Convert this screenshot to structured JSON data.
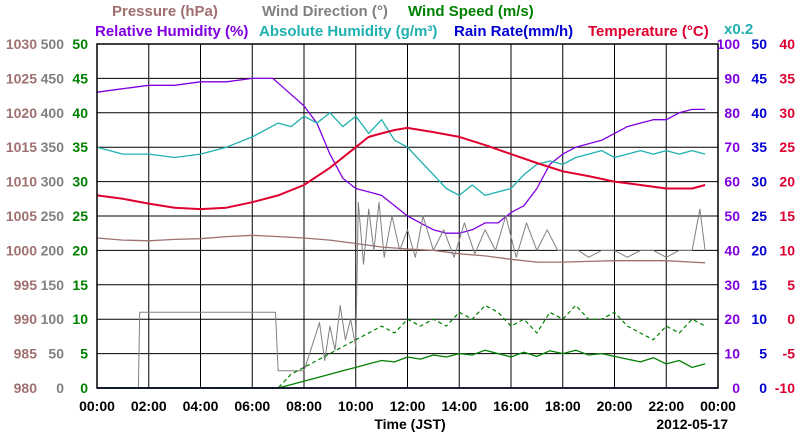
{
  "chart_data": {
    "type": "line",
    "date": "2012-05-17",
    "xlabel": "Time (JST)",
    "x_ticks": [
      "00:00",
      "02:00",
      "04:00",
      "06:00",
      "08:00",
      "10:00",
      "12:00",
      "14:00",
      "16:00",
      "18:00",
      "20:00",
      "22:00",
      "00:00"
    ],
    "x_range_hours": [
      0,
      24
    ],
    "grid": true,
    "legend": [
      {
        "name": "Pressure (hPa)",
        "color": "#a07070"
      },
      {
        "name": "Wind Direction (°)",
        "color": "#808080"
      },
      {
        "name": "Wind Speed (m/s)",
        "color": "#008000"
      },
      {
        "name": "Relative Humidity (%)",
        "color": "#8000e0"
      },
      {
        "name": "Absolute Humidity (g/m³)",
        "color": "#20b0b0"
      },
      {
        "name": "Rain Rate(mm/h)",
        "color": "#0000d0"
      },
      {
        "name": "Temperature (°C)",
        "color": "#e00030"
      }
    ],
    "multiplier_label": "x0.2",
    "axes": {
      "pressure": {
        "color": "#a07070",
        "range": [
          980,
          1030
        ],
        "ticks": [
          "980",
          "985",
          "990",
          "995",
          "1000",
          "1005",
          "1010",
          "1015",
          "1020",
          "1025",
          "1030"
        ]
      },
      "wind_direction": {
        "color": "#808080",
        "range": [
          0,
          500
        ],
        "ticks": [
          "0",
          "50",
          "100",
          "150",
          "200",
          "250",
          "300",
          "350",
          "400",
          "450",
          "500"
        ]
      },
      "wind_speed": {
        "color": "#008000",
        "range": [
          0,
          50
        ],
        "ticks": [
          "0",
          "5",
          "10",
          "15",
          "20",
          "25",
          "30",
          "35",
          "40",
          "45",
          "50"
        ]
      },
      "relative_humidity": {
        "color": "#8000e0",
        "range": [
          0,
          100
        ],
        "ticks": [
          "0",
          "10",
          "20",
          "30",
          "40",
          "50",
          "60",
          "70",
          "80",
          "90",
          "100"
        ]
      },
      "absolute_humidity": {
        "color": "#20b0b0",
        "range": [
          0,
          10
        ],
        "ticks": [
          "0",
          "5",
          "10",
          "15",
          "20",
          "25",
          "30",
          "35",
          "40",
          "45",
          "50"
        ]
      },
      "rain_rate": {
        "color": "#0000d0",
        "range": [
          0,
          50
        ],
        "ticks": [
          "0",
          "5",
          "10",
          "15",
          "20",
          "25",
          "30",
          "35",
          "40",
          "45",
          "50"
        ]
      },
      "temperature": {
        "color": "#e00030",
        "range": [
          -10,
          40
        ],
        "ticks": [
          "-10",
          "-5",
          "0",
          "5",
          "10",
          "15",
          "20",
          "25",
          "30",
          "35",
          "40"
        ]
      }
    },
    "series": [
      {
        "name": "Relative Humidity (%)",
        "axis": "relative_humidity",
        "x": [
          0,
          1,
          2,
          3,
          4,
          5,
          6,
          6.8,
          7.4,
          8,
          8.5,
          9,
          9.5,
          10,
          10.5,
          11,
          11.5,
          12,
          12.5,
          13,
          13.5,
          14,
          14.5,
          15,
          15.5,
          16,
          16.5,
          17,
          17.5,
          18,
          18.5,
          19,
          19.5,
          20,
          20.5,
          21,
          21.5,
          22,
          22.5,
          23,
          23.5
        ],
        "y": [
          86,
          87,
          88,
          88,
          89,
          89,
          90,
          90,
          86,
          82,
          77,
          68,
          61,
          58,
          57,
          56,
          53,
          50,
          48,
          46,
          45,
          45,
          46,
          48,
          48,
          51,
          53,
          58,
          65,
          68,
          70,
          71,
          72,
          74,
          76,
          77,
          78,
          78,
          80,
          81,
          81
        ]
      },
      {
        "name": "Absolute Humidity (g/m³)",
        "axis": "absolute_humidity",
        "x": [
          0,
          1,
          2,
          3,
          4,
          5,
          6,
          7,
          7.5,
          8,
          8.5,
          9,
          9.5,
          10,
          10.5,
          11,
          11.5,
          12,
          12.5,
          13,
          13.5,
          14,
          14.5,
          15,
          15.5,
          16,
          16.5,
          17,
          17.5,
          18,
          18.5,
          19,
          19.5,
          20,
          20.5,
          21,
          21.5,
          22,
          22.5,
          23,
          23.5
        ],
        "y": [
          7.0,
          6.8,
          6.8,
          6.7,
          6.8,
          7.0,
          7.3,
          7.7,
          7.6,
          7.9,
          7.7,
          8.0,
          7.6,
          7.9,
          7.4,
          7.8,
          7.2,
          7.0,
          6.6,
          6.2,
          5.8,
          5.6,
          5.9,
          5.6,
          5.7,
          5.8,
          6.2,
          6.5,
          6.6,
          6.5,
          6.7,
          6.8,
          6.9,
          6.7,
          6.8,
          6.9,
          6.8,
          6.9,
          6.8,
          6.9,
          6.8
        ]
      },
      {
        "name": "Temperature (°C)",
        "axis": "temperature",
        "x": [
          0,
          1,
          2,
          3,
          4,
          5,
          6,
          7,
          8,
          9,
          10,
          10.5,
          11,
          11.5,
          12,
          13,
          14,
          15,
          16,
          17,
          18,
          19,
          20,
          21,
          22,
          23,
          23.5
        ],
        "y": [
          18.0,
          17.5,
          16.8,
          16.2,
          16.0,
          16.2,
          17.0,
          18.0,
          19.5,
          22.0,
          25.0,
          26.5,
          27.0,
          27.5,
          27.8,
          27.2,
          26.5,
          25.3,
          24.0,
          22.7,
          21.5,
          20.8,
          20.0,
          19.5,
          19.0,
          19.0,
          19.5
        ]
      },
      {
        "name": "Pressure (hPa)",
        "axis": "pressure",
        "x": [
          0,
          1,
          2,
          3,
          4,
          5,
          6,
          7,
          8,
          9,
          10,
          11,
          12,
          13,
          14,
          15,
          16,
          17,
          18,
          19,
          20,
          21,
          22,
          23,
          23.5
        ],
        "y": [
          1001.8,
          1001.5,
          1001.4,
          1001.6,
          1001.7,
          1002.0,
          1002.2,
          1002.0,
          1001.8,
          1001.5,
          1001.0,
          1000.5,
          1000.2,
          1000.0,
          999.5,
          999.2,
          998.7,
          998.3,
          998.3,
          998.4,
          998.5,
          998.5,
          998.5,
          998.3,
          998.2
        ]
      },
      {
        "name": "Wind Direction (°)",
        "axis": "wind_direction",
        "x": [
          0,
          1.6,
          1.65,
          6.9,
          7.0,
          8.0,
          8.3,
          8.6,
          8.8,
          9.0,
          9.2,
          9.4,
          9.6,
          9.8,
          10.0,
          10.1,
          10.3,
          10.5,
          10.7,
          10.9,
          11.1,
          11.4,
          11.7,
          12.0,
          12.3,
          12.6,
          13.0,
          13.4,
          13.8,
          14.2,
          14.6,
          15.0,
          15.4,
          15.8,
          16.2,
          16.6,
          17.0,
          17.4,
          17.8,
          18.2,
          18.6,
          19.0,
          19.5,
          20.0,
          20.5,
          21.0,
          21.5,
          22.0,
          22.5,
          23.0,
          23.3,
          23.5
        ],
        "y": [
          0,
          0,
          110,
          110,
          25,
          25,
          60,
          95,
          40,
          90,
          55,
          120,
          70,
          100,
          60,
          270,
          180,
          260,
          200,
          270,
          190,
          250,
          200,
          230,
          190,
          250,
          200,
          230,
          190,
          240,
          195,
          230,
          200,
          250,
          190,
          240,
          200,
          230,
          200,
          200,
          200,
          190,
          200,
          200,
          190,
          200,
          200,
          190,
          200,
          200,
          260,
          200
        ]
      },
      {
        "name": "Wind Speed (m/s) gust",
        "axis": "wind_speed",
        "x": [
          0,
          1,
          2,
          3,
          4,
          5,
          6,
          7,
          7.5,
          8,
          8.5,
          9,
          9.5,
          10,
          10.5,
          11,
          11.5,
          12,
          12.5,
          13,
          13.5,
          14,
          14.5,
          15,
          15.5,
          16,
          16.5,
          17,
          17.5,
          18,
          18.5,
          19,
          19.5,
          20,
          20.5,
          21,
          21.5,
          22,
          22.5,
          23,
          23.5
        ],
        "y": [
          0,
          0,
          0,
          0,
          0,
          0,
          0,
          0,
          2,
          3,
          4,
          5,
          6,
          7,
          8,
          9,
          8,
          10,
          9,
          10,
          9,
          11,
          10,
          12,
          11,
          9,
          10,
          8,
          11,
          10,
          12,
          10,
          10,
          11,
          9,
          8,
          7,
          9,
          8,
          10,
          9
        ]
      },
      {
        "name": "Wind Speed (m/s)",
        "axis": "wind_speed",
        "x": [
          0,
          1,
          2,
          3,
          4,
          5,
          6,
          7,
          7.5,
          8,
          8.5,
          9,
          9.5,
          10,
          10.5,
          11,
          11.5,
          12,
          12.5,
          13,
          13.5,
          14,
          14.5,
          15,
          15.5,
          16,
          16.5,
          17,
          17.5,
          18,
          18.5,
          19,
          19.5,
          20,
          20.5,
          21,
          21.5,
          22,
          22.5,
          23,
          23.5
        ],
        "y": [
          0,
          0,
          0,
          0,
          0,
          0,
          0,
          0,
          0.5,
          1,
          1.5,
          2,
          2.5,
          3,
          3.5,
          4,
          3.8,
          4.5,
          4.2,
          4.8,
          4.5,
          5,
          4.8,
          5.5,
          5,
          4.5,
          5.2,
          4.6,
          5.4,
          5,
          5.5,
          4.8,
          5,
          4.6,
          4.2,
          3.8,
          4.4,
          3.5,
          4,
          3,
          3.5
        ]
      },
      {
        "name": "Rain Rate(mm/h)",
        "axis": "rain_rate",
        "x": [
          0,
          24
        ],
        "y": [
          0,
          0
        ]
      }
    ]
  }
}
